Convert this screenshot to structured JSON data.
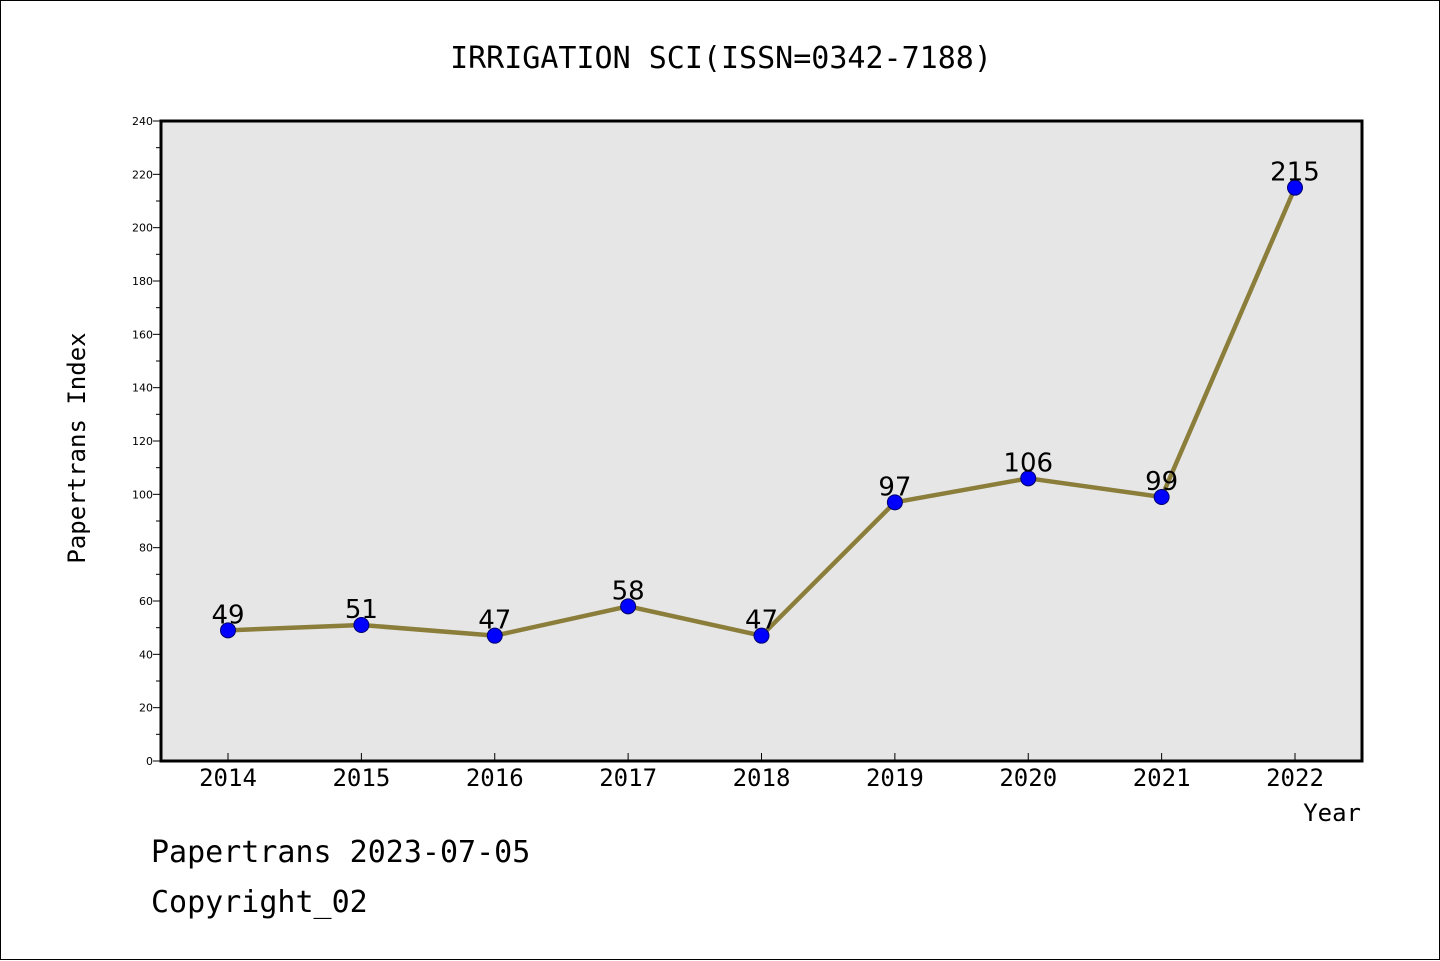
{
  "chart_data": {
    "type": "line",
    "title": "IRRIGATION SCI(ISSN=0342-7188)",
    "xlabel": "Year",
    "ylabel": "Papertrans Index",
    "categories": [
      "2014",
      "2015",
      "2016",
      "2017",
      "2018",
      "2019",
      "2020",
      "2021",
      "2022"
    ],
    "series": [
      {
        "values": [
          49,
          51,
          47,
          58,
          47,
          97,
          106,
          99,
          215
        ]
      }
    ],
    "data_labels": [
      "49",
      "51",
      "47",
      "58",
      "47",
      "97",
      "106",
      "99",
      "215"
    ],
    "ylim": [
      0,
      240
    ],
    "yticks": [
      "0",
      "20",
      "40",
      "60",
      "80",
      "100",
      "120",
      "140",
      "160",
      "180",
      "200",
      "220",
      "240"
    ],
    "grid": false,
    "legend": "none",
    "colors": {
      "line": "#8b7d3a",
      "marker": "#0000ff",
      "plot_background": "#e6e6e6"
    }
  },
  "footer": {
    "line1": "Papertrans 2023-07-05",
    "line2": "Copyright_02"
  }
}
